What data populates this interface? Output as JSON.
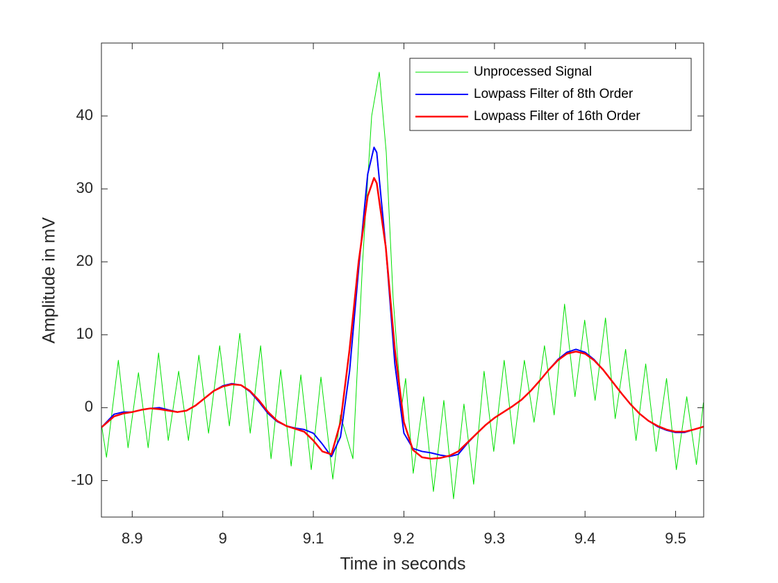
{
  "chart_data": {
    "type": "line",
    "xlabel": "Time in seconds",
    "ylabel": "Amplitude in mV",
    "xlim": [
      8.866,
      9.531
    ],
    "ylim": [
      -15,
      50
    ],
    "xticks": [
      8.9,
      9,
      9.1,
      9.2,
      9.3,
      9.4,
      9.5
    ],
    "yticks": [
      -10,
      0,
      10,
      20,
      30,
      40
    ],
    "grid": false,
    "legend_location": "northeast",
    "series": [
      {
        "name": "Unprocessed Signal",
        "color": "#00e000",
        "width": 1,
        "x": [
          8.8663,
          8.8716,
          8.8847,
          8.8954,
          8.9069,
          8.9176,
          8.9291,
          8.9398,
          8.9513,
          8.9621,
          8.9736,
          8.9843,
          8.9966,
          9.0073,
          9.0188,
          9.0303,
          9.0418,
          9.0533,
          9.064,
          9.0755,
          9.0862,
          9.0977,
          9.1084,
          9.1215,
          9.1299,
          9.1437,
          9.1544,
          9.1644,
          9.1728,
          9.1805,
          9.1881,
          9.1973,
          9.2019,
          9.2103,
          9.2218,
          9.2326,
          9.2441,
          9.2548,
          9.2663,
          9.277,
          9.2885,
          9.2992,
          9.3107,
          9.3215,
          9.333,
          9.3437,
          9.3552,
          9.3659,
          9.3774,
          9.3889,
          9.3996,
          9.4111,
          9.4226,
          9.4333,
          9.4448,
          9.4563,
          9.467,
          9.4785,
          9.49,
          9.5008,
          9.5123,
          9.523,
          9.5307
        ],
        "values": [
          -2.5,
          -6.8,
          6.5,
          -5.5,
          4.8,
          -5.5,
          7.5,
          -4.5,
          5,
          -4.5,
          7.2,
          -3.5,
          8.5,
          -2.5,
          10.2,
          -3.5,
          8.5,
          -7,
          5.2,
          -8,
          4.5,
          -8.5,
          4.2,
          -9.8,
          -1,
          -7,
          20,
          40,
          46,
          35,
          15,
          0,
          4,
          -9,
          1.5,
          -11.5,
          1,
          -12.5,
          0.5,
          -10.5,
          5,
          -6,
          6.5,
          -5,
          6.5,
          -2,
          8.5,
          -1,
          14.2,
          1.5,
          12,
          1,
          12.3,
          -1.5,
          8,
          -4.5,
          6,
          -6,
          4,
          -8.5,
          1.5,
          -7.8,
          0.7
        ]
      },
      {
        "name": "Lowpass Filter of 8th Order",
        "color": "#0000ff",
        "width": 2,
        "x": [
          8.866,
          8.88,
          8.89,
          8.9,
          8.91,
          8.92,
          8.93,
          8.94,
          8.95,
          8.96,
          8.97,
          8.98,
          8.99,
          9,
          9.01,
          9.02,
          9.03,
          9.04,
          9.05,
          9.06,
          9.07,
          9.08,
          9.09,
          9.1,
          9.11,
          9.12,
          9.13,
          9.14,
          9.15,
          9.16,
          9.167,
          9.17,
          9.18,
          9.19,
          9.2,
          9.21,
          9.22,
          9.23,
          9.24,
          9.25,
          9.26,
          9.27,
          9.28,
          9.29,
          9.3,
          9.31,
          9.32,
          9.33,
          9.34,
          9.35,
          9.36,
          9.37,
          9.38,
          9.39,
          9.4,
          9.41,
          9.42,
          9.43,
          9.44,
          9.45,
          9.46,
          9.47,
          9.48,
          9.49,
          9.5,
          9.51,
          9.52,
          9.531
        ],
        "values": [
          -2.7,
          -0.9,
          -0.6,
          -0.6,
          -0.3,
          -0.1,
          0,
          -0.3,
          -0.6,
          -0.4,
          0.3,
          1.3,
          2.3,
          3,
          3.3,
          3.1,
          2.2,
          0.8,
          -0.8,
          -1.9,
          -2.5,
          -2.8,
          -3,
          -3.5,
          -5,
          -6.7,
          -4,
          5,
          19,
          32,
          35.7,
          35,
          22,
          6,
          -3.5,
          -5.6,
          -6,
          -6.2,
          -6.5,
          -6.7,
          -6.4,
          -4.9,
          -3.6,
          -2.4,
          -1.4,
          -0.6,
          0.2,
          1.1,
          2.3,
          3.7,
          5.2,
          6.6,
          7.6,
          8,
          7.6,
          6.6,
          5.2,
          3.6,
          2,
          0.5,
          -0.8,
          -1.8,
          -2.6,
          -3.1,
          -3.4,
          -3.4,
          -3,
          -2.6
        ]
      },
      {
        "name": "Lowpass Filter of 16th Order",
        "color": "#ff0000",
        "width": 2.5,
        "x": [
          8.866,
          8.88,
          8.89,
          8.9,
          8.91,
          8.92,
          8.93,
          8.94,
          8.95,
          8.96,
          8.97,
          8.98,
          8.99,
          9,
          9.01,
          9.02,
          9.03,
          9.04,
          9.05,
          9.06,
          9.07,
          9.08,
          9.09,
          9.1,
          9.11,
          9.12,
          9.13,
          9.14,
          9.15,
          9.16,
          9.167,
          9.17,
          9.18,
          9.19,
          9.2,
          9.21,
          9.22,
          9.23,
          9.24,
          9.25,
          9.26,
          9.27,
          9.28,
          9.29,
          9.3,
          9.31,
          9.32,
          9.33,
          9.34,
          9.35,
          9.36,
          9.37,
          9.38,
          9.39,
          9.4,
          9.41,
          9.42,
          9.43,
          9.44,
          9.45,
          9.46,
          9.47,
          9.48,
          9.49,
          9.5,
          9.51,
          9.52,
          9.531
        ],
        "values": [
          -2.7,
          -1.2,
          -0.8,
          -0.6,
          -0.3,
          -0.1,
          -0.2,
          -0.4,
          -0.6,
          -0.4,
          0.3,
          1.3,
          2.3,
          2.9,
          3.2,
          3.1,
          2.3,
          1,
          -0.6,
          -1.8,
          -2.5,
          -2.9,
          -3.3,
          -4.5,
          -6,
          -6.4,
          -2,
          8,
          20,
          29,
          31.5,
          30.8,
          22,
          8,
          -2,
          -5.8,
          -6.8,
          -7,
          -6.9,
          -6.6,
          -6,
          -4.8,
          -3.6,
          -2.4,
          -1.4,
          -0.6,
          0.2,
          1.1,
          2.3,
          3.7,
          5.2,
          6.5,
          7.4,
          7.7,
          7.4,
          6.5,
          5.2,
          3.6,
          2,
          0.5,
          -0.8,
          -1.8,
          -2.5,
          -3,
          -3.3,
          -3.3,
          -3,
          -2.6
        ]
      }
    ]
  }
}
